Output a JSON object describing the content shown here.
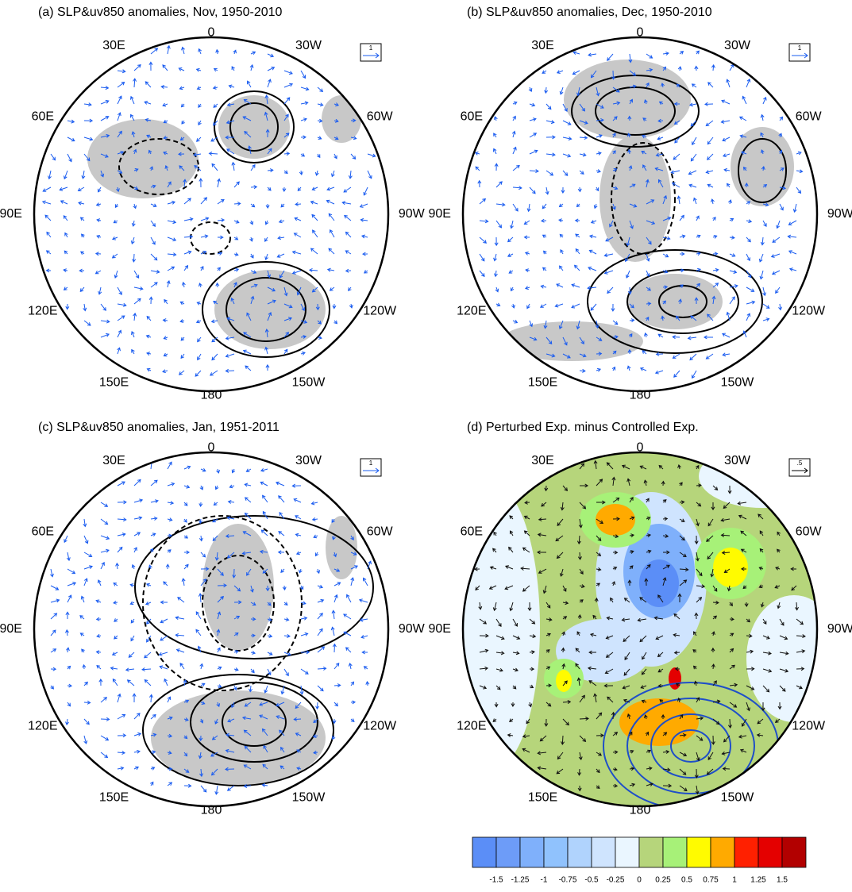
{
  "panels": [
    {
      "title": "(a) SLP&uv850 anomalies, Nov, 1950-2010",
      "ref_vector": "1",
      "lon_labels": [
        "0",
        "30W",
        "60W",
        "90W",
        "120W",
        "150W",
        "180",
        "150E",
        "120E",
        "90E",
        "60E",
        "30E"
      ]
    },
    {
      "title": "(b) SLP&uv850 anomalies, Dec, 1950-2010",
      "ref_vector": "1",
      "lon_labels": [
        "0",
        "30W",
        "60W",
        "90W",
        "120W",
        "150W",
        "180",
        "150E",
        "120E",
        "90E",
        "60E",
        "30E"
      ]
    },
    {
      "title": "(c) SLP&uv850 anomalies, Jan, 1951-2011",
      "ref_vector": "1",
      "lon_labels": [
        "0",
        "30W",
        "60W",
        "90W",
        "120W",
        "150W",
        "180",
        "150E",
        "120E",
        "90E",
        "60E",
        "30E"
      ]
    },
    {
      "title": "(d) Perturbed Exp. minus Controlled Exp.",
      "ref_vector": ".5",
      "lon_labels": [
        "0",
        "30W",
        "60W",
        "90W",
        "120W",
        "150W",
        "180",
        "150E",
        "120E",
        "90E",
        "60E",
        "30E"
      ]
    }
  ],
  "colorbar": {
    "colors": [
      "#5b8ef7",
      "#6d9cf8",
      "#7fb0fb",
      "#90c2fd",
      "#b0d3fd",
      "#cfe4fe",
      "#eaf6ff",
      "#b6d57b",
      "#a7f178",
      "#fffb00",
      "#ffaa00",
      "#ff2000",
      "#e40000",
      "#b20000"
    ],
    "labels": [
      "-1.5",
      "-1.25",
      "-1",
      "-0.75",
      "-0.5",
      "-0.25",
      "0",
      "0.25",
      "0.5",
      "0.75",
      "1",
      "1.25",
      "1.5"
    ]
  }
}
